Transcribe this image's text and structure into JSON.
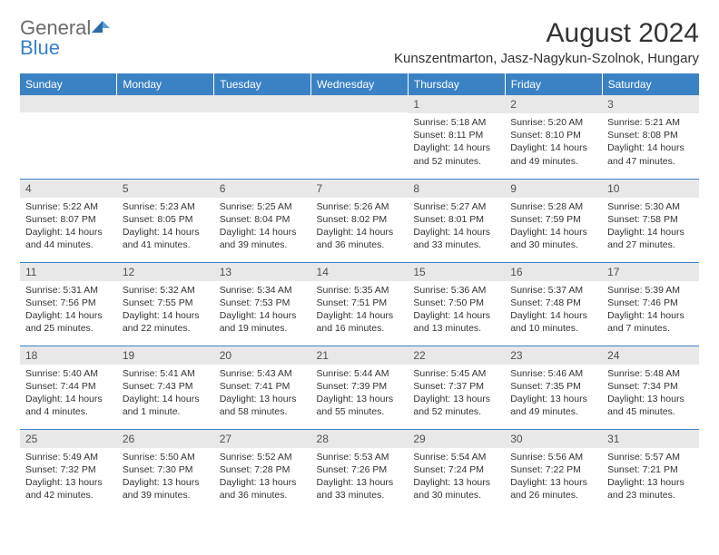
{
  "logo": {
    "general": "General",
    "blue": "Blue"
  },
  "title": "August 2024",
  "location": "Kunszentmarton, Jasz-Nagykun-Szolnok, Hungary",
  "colors": {
    "header_bg": "#3b82c4",
    "header_text": "#ffffff",
    "daynum_bg": "#e8e8e8",
    "daynum_text": "#505050",
    "body_text": "#333333",
    "divider": "#3b82c4"
  },
  "days_of_week": [
    "Sunday",
    "Monday",
    "Tuesday",
    "Wednesday",
    "Thursday",
    "Friday",
    "Saturday"
  ],
  "weeks": [
    [
      {
        "day": "",
        "sunrise": "",
        "sunset": "",
        "daylight": ""
      },
      {
        "day": "",
        "sunrise": "",
        "sunset": "",
        "daylight": ""
      },
      {
        "day": "",
        "sunrise": "",
        "sunset": "",
        "daylight": ""
      },
      {
        "day": "",
        "sunrise": "",
        "sunset": "",
        "daylight": ""
      },
      {
        "day": "1",
        "sunrise": "Sunrise: 5:18 AM",
        "sunset": "Sunset: 8:11 PM",
        "daylight": "Daylight: 14 hours and 52 minutes."
      },
      {
        "day": "2",
        "sunrise": "Sunrise: 5:20 AM",
        "sunset": "Sunset: 8:10 PM",
        "daylight": "Daylight: 14 hours and 49 minutes."
      },
      {
        "day": "3",
        "sunrise": "Sunrise: 5:21 AM",
        "sunset": "Sunset: 8:08 PM",
        "daylight": "Daylight: 14 hours and 47 minutes."
      }
    ],
    [
      {
        "day": "4",
        "sunrise": "Sunrise: 5:22 AM",
        "sunset": "Sunset: 8:07 PM",
        "daylight": "Daylight: 14 hours and 44 minutes."
      },
      {
        "day": "5",
        "sunrise": "Sunrise: 5:23 AM",
        "sunset": "Sunset: 8:05 PM",
        "daylight": "Daylight: 14 hours and 41 minutes."
      },
      {
        "day": "6",
        "sunrise": "Sunrise: 5:25 AM",
        "sunset": "Sunset: 8:04 PM",
        "daylight": "Daylight: 14 hours and 39 minutes."
      },
      {
        "day": "7",
        "sunrise": "Sunrise: 5:26 AM",
        "sunset": "Sunset: 8:02 PM",
        "daylight": "Daylight: 14 hours and 36 minutes."
      },
      {
        "day": "8",
        "sunrise": "Sunrise: 5:27 AM",
        "sunset": "Sunset: 8:01 PM",
        "daylight": "Daylight: 14 hours and 33 minutes."
      },
      {
        "day": "9",
        "sunrise": "Sunrise: 5:28 AM",
        "sunset": "Sunset: 7:59 PM",
        "daylight": "Daylight: 14 hours and 30 minutes."
      },
      {
        "day": "10",
        "sunrise": "Sunrise: 5:30 AM",
        "sunset": "Sunset: 7:58 PM",
        "daylight": "Daylight: 14 hours and 27 minutes."
      }
    ],
    [
      {
        "day": "11",
        "sunrise": "Sunrise: 5:31 AM",
        "sunset": "Sunset: 7:56 PM",
        "daylight": "Daylight: 14 hours and 25 minutes."
      },
      {
        "day": "12",
        "sunrise": "Sunrise: 5:32 AM",
        "sunset": "Sunset: 7:55 PM",
        "daylight": "Daylight: 14 hours and 22 minutes."
      },
      {
        "day": "13",
        "sunrise": "Sunrise: 5:34 AM",
        "sunset": "Sunset: 7:53 PM",
        "daylight": "Daylight: 14 hours and 19 minutes."
      },
      {
        "day": "14",
        "sunrise": "Sunrise: 5:35 AM",
        "sunset": "Sunset: 7:51 PM",
        "daylight": "Daylight: 14 hours and 16 minutes."
      },
      {
        "day": "15",
        "sunrise": "Sunrise: 5:36 AM",
        "sunset": "Sunset: 7:50 PM",
        "daylight": "Daylight: 14 hours and 13 minutes."
      },
      {
        "day": "16",
        "sunrise": "Sunrise: 5:37 AM",
        "sunset": "Sunset: 7:48 PM",
        "daylight": "Daylight: 14 hours and 10 minutes."
      },
      {
        "day": "17",
        "sunrise": "Sunrise: 5:39 AM",
        "sunset": "Sunset: 7:46 PM",
        "daylight": "Daylight: 14 hours and 7 minutes."
      }
    ],
    [
      {
        "day": "18",
        "sunrise": "Sunrise: 5:40 AM",
        "sunset": "Sunset: 7:44 PM",
        "daylight": "Daylight: 14 hours and 4 minutes."
      },
      {
        "day": "19",
        "sunrise": "Sunrise: 5:41 AM",
        "sunset": "Sunset: 7:43 PM",
        "daylight": "Daylight: 14 hours and 1 minute."
      },
      {
        "day": "20",
        "sunrise": "Sunrise: 5:43 AM",
        "sunset": "Sunset: 7:41 PM",
        "daylight": "Daylight: 13 hours and 58 minutes."
      },
      {
        "day": "21",
        "sunrise": "Sunrise: 5:44 AM",
        "sunset": "Sunset: 7:39 PM",
        "daylight": "Daylight: 13 hours and 55 minutes."
      },
      {
        "day": "22",
        "sunrise": "Sunrise: 5:45 AM",
        "sunset": "Sunset: 7:37 PM",
        "daylight": "Daylight: 13 hours and 52 minutes."
      },
      {
        "day": "23",
        "sunrise": "Sunrise: 5:46 AM",
        "sunset": "Sunset: 7:35 PM",
        "daylight": "Daylight: 13 hours and 49 minutes."
      },
      {
        "day": "24",
        "sunrise": "Sunrise: 5:48 AM",
        "sunset": "Sunset: 7:34 PM",
        "daylight": "Daylight: 13 hours and 45 minutes."
      }
    ],
    [
      {
        "day": "25",
        "sunrise": "Sunrise: 5:49 AM",
        "sunset": "Sunset: 7:32 PM",
        "daylight": "Daylight: 13 hours and 42 minutes."
      },
      {
        "day": "26",
        "sunrise": "Sunrise: 5:50 AM",
        "sunset": "Sunset: 7:30 PM",
        "daylight": "Daylight: 13 hours and 39 minutes."
      },
      {
        "day": "27",
        "sunrise": "Sunrise: 5:52 AM",
        "sunset": "Sunset: 7:28 PM",
        "daylight": "Daylight: 13 hours and 36 minutes."
      },
      {
        "day": "28",
        "sunrise": "Sunrise: 5:53 AM",
        "sunset": "Sunset: 7:26 PM",
        "daylight": "Daylight: 13 hours and 33 minutes."
      },
      {
        "day": "29",
        "sunrise": "Sunrise: 5:54 AM",
        "sunset": "Sunset: 7:24 PM",
        "daylight": "Daylight: 13 hours and 30 minutes."
      },
      {
        "day": "30",
        "sunrise": "Sunrise: 5:56 AM",
        "sunset": "Sunset: 7:22 PM",
        "daylight": "Daylight: 13 hours and 26 minutes."
      },
      {
        "day": "31",
        "sunrise": "Sunrise: 5:57 AM",
        "sunset": "Sunset: 7:21 PM",
        "daylight": "Daylight: 13 hours and 23 minutes."
      }
    ]
  ]
}
